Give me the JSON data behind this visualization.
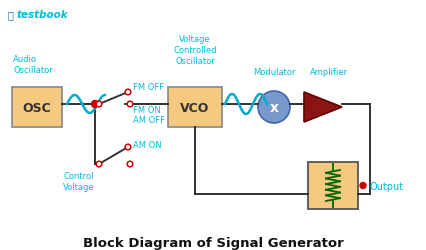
{
  "title": "Block Diagram of Signal Generator",
  "background_color": "#ffffff",
  "brand_text": "testbook",
  "brand_color": "#00bbdd",
  "label_color": "#00bbdd",
  "box_fill": "#f5c980",
  "box_edge": "#888888",
  "osc_label": "OSC",
  "vco_label": "VCO",
  "audio_osc_label": "Audio\nOscillator",
  "voltage_osc_label": "Voltage\nControlled\nOscillator",
  "modulator_label": "Modulator",
  "amplifier_label": "Amplifier",
  "fm_off_label": "FM OFF",
  "fm_on_am_off_label": "FM ON\nAM OFF",
  "am_on_label": "AM ON",
  "control_voltage_label": "Control\nVoltage",
  "output_label": "Output",
  "wave_color": "#00aacc",
  "switch_color": "#333333",
  "dot_color": "#cc0000",
  "amplifier_fill": "#8b1515",
  "modulator_fill": "#7799cc",
  "wire_color": "#222222"
}
